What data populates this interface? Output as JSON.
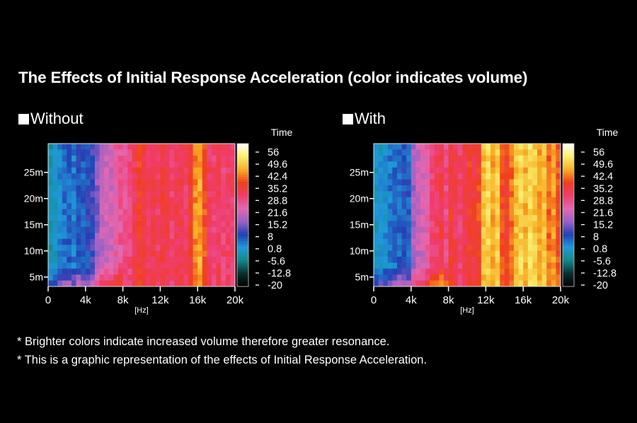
{
  "title": "The Effects of Initial Response Acceleration (color indicates volume)",
  "notes": [
    "* Brighter colors indicate increased volume therefore greater resonance.",
    "* This is a graphic representation of the effects of Initial Response Acceleration."
  ],
  "chart_data": [
    {
      "type": "heatmap",
      "title": "Without",
      "xlabel": "[Hz]",
      "colorbar_label": "Time",
      "x_ticks": [
        "0",
        "4k",
        "8k",
        "12k",
        "16k",
        "20k"
      ],
      "x_tick_values": [
        0,
        4000,
        8000,
        12000,
        16000,
        20000
      ],
      "xlim": [
        0,
        20000
      ],
      "y_ticks": [
        "5m",
        "10m",
        "15m",
        "20m",
        "25m"
      ],
      "y_tick_values": [
        5,
        10,
        15,
        20,
        25
      ],
      "ylim": [
        3.2,
        30.5
      ],
      "colorbar_ticks": [
        "56",
        "49.6",
        "42.4",
        "35.2",
        "28.8",
        "21.6",
        "15.2",
        "8",
        "0.8",
        "-5.6",
        "-12.8",
        "-20"
      ],
      "clim": [
        -20,
        56
      ],
      "frequency_bin_hz": 500,
      "column_levels": [
        -3,
        -1,
        2,
        4,
        5,
        3,
        6,
        5,
        7,
        9,
        14,
        17,
        19,
        20,
        22,
        24,
        25,
        27,
        30,
        34,
        32,
        30,
        31,
        29,
        32,
        31,
        28,
        30,
        31,
        29,
        33,
        40,
        42,
        36,
        29,
        28,
        30,
        27,
        29,
        28
      ]
    },
    {
      "type": "heatmap",
      "title": "With",
      "xlabel": "[Hz]",
      "colorbar_label": "Time",
      "x_ticks": [
        "0",
        "4k",
        "8k",
        "12k",
        "16k",
        "20k"
      ],
      "x_tick_values": [
        0,
        4000,
        8000,
        12000,
        16000,
        20000
      ],
      "xlim": [
        0,
        20000
      ],
      "y_ticks": [
        "5m",
        "10m",
        "15m",
        "20m",
        "25m"
      ],
      "y_tick_values": [
        5,
        10,
        15,
        20,
        25
      ],
      "ylim": [
        3.2,
        30.5
      ],
      "colorbar_ticks": [
        "56",
        "49.6",
        "42.4",
        "35.2",
        "28.8",
        "21.6",
        "15.2",
        "8",
        "0.8",
        "-5.6",
        "-12.8",
        "-20"
      ],
      "clim": [
        -20,
        56
      ],
      "frequency_bin_hz": 500,
      "column_levels": [
        -1,
        0,
        1,
        3,
        4,
        5,
        6,
        5,
        16,
        18,
        20,
        22,
        27,
        29,
        31,
        26,
        33,
        30,
        28,
        32,
        34,
        32,
        35,
        44,
        46,
        42,
        45,
        36,
        34,
        38,
        44,
        46,
        43,
        47,
        45,
        42,
        44,
        38,
        41,
        36
      ]
    }
  ],
  "colors": {
    "colormap": [
      "#000000",
      "#0b2e2e",
      "#128a8a",
      "#1f9ad8",
      "#2440b4",
      "#9a62c6",
      "#e468b0",
      "#f03c6c",
      "#f0401c",
      "#f8b024",
      "#f8f070",
      "#ffffff"
    ]
  }
}
